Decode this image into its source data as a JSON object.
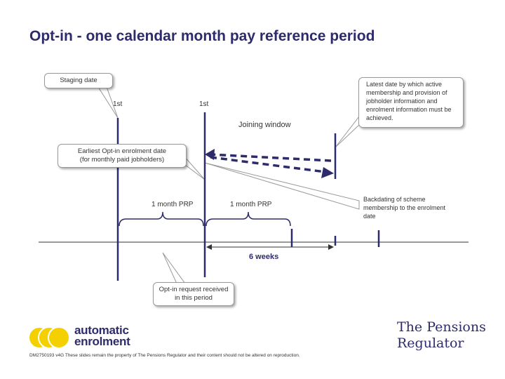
{
  "title": "Opt-in - one calendar month pay reference period",
  "labels": {
    "staging_date": "Staging date",
    "first_a": "1st",
    "first_b": "1st",
    "joining_window": "Joining window",
    "latest_date": "Latest date by which active membership and provision of jobholder information and enrolment information must be achieved.",
    "earliest_line1": "Earliest Opt-in enrolment date",
    "earliest_line2": "(for monthly paid jobholders)",
    "prp_a": "1 month PRP",
    "prp_b": "1 month PRP",
    "backdating": "Backdating of scheme membership to the enrolment date",
    "six_weeks": "6 weeks",
    "optin_line1": "Opt-in request received",
    "optin_line2": "in this period"
  },
  "logos": {
    "ae_line1": "automatic",
    "ae_line2": "enrolment",
    "tpr_line1": "The Pensions",
    "tpr_line2": "Regulator"
  },
  "footer": "DM2750193 v4G These slides remain the property of The Pensions Regulator and their content should not be altered on reproduction.",
  "colors": {
    "primary": "#2d2b6b",
    "ae_yellow": "#f5d000"
  }
}
